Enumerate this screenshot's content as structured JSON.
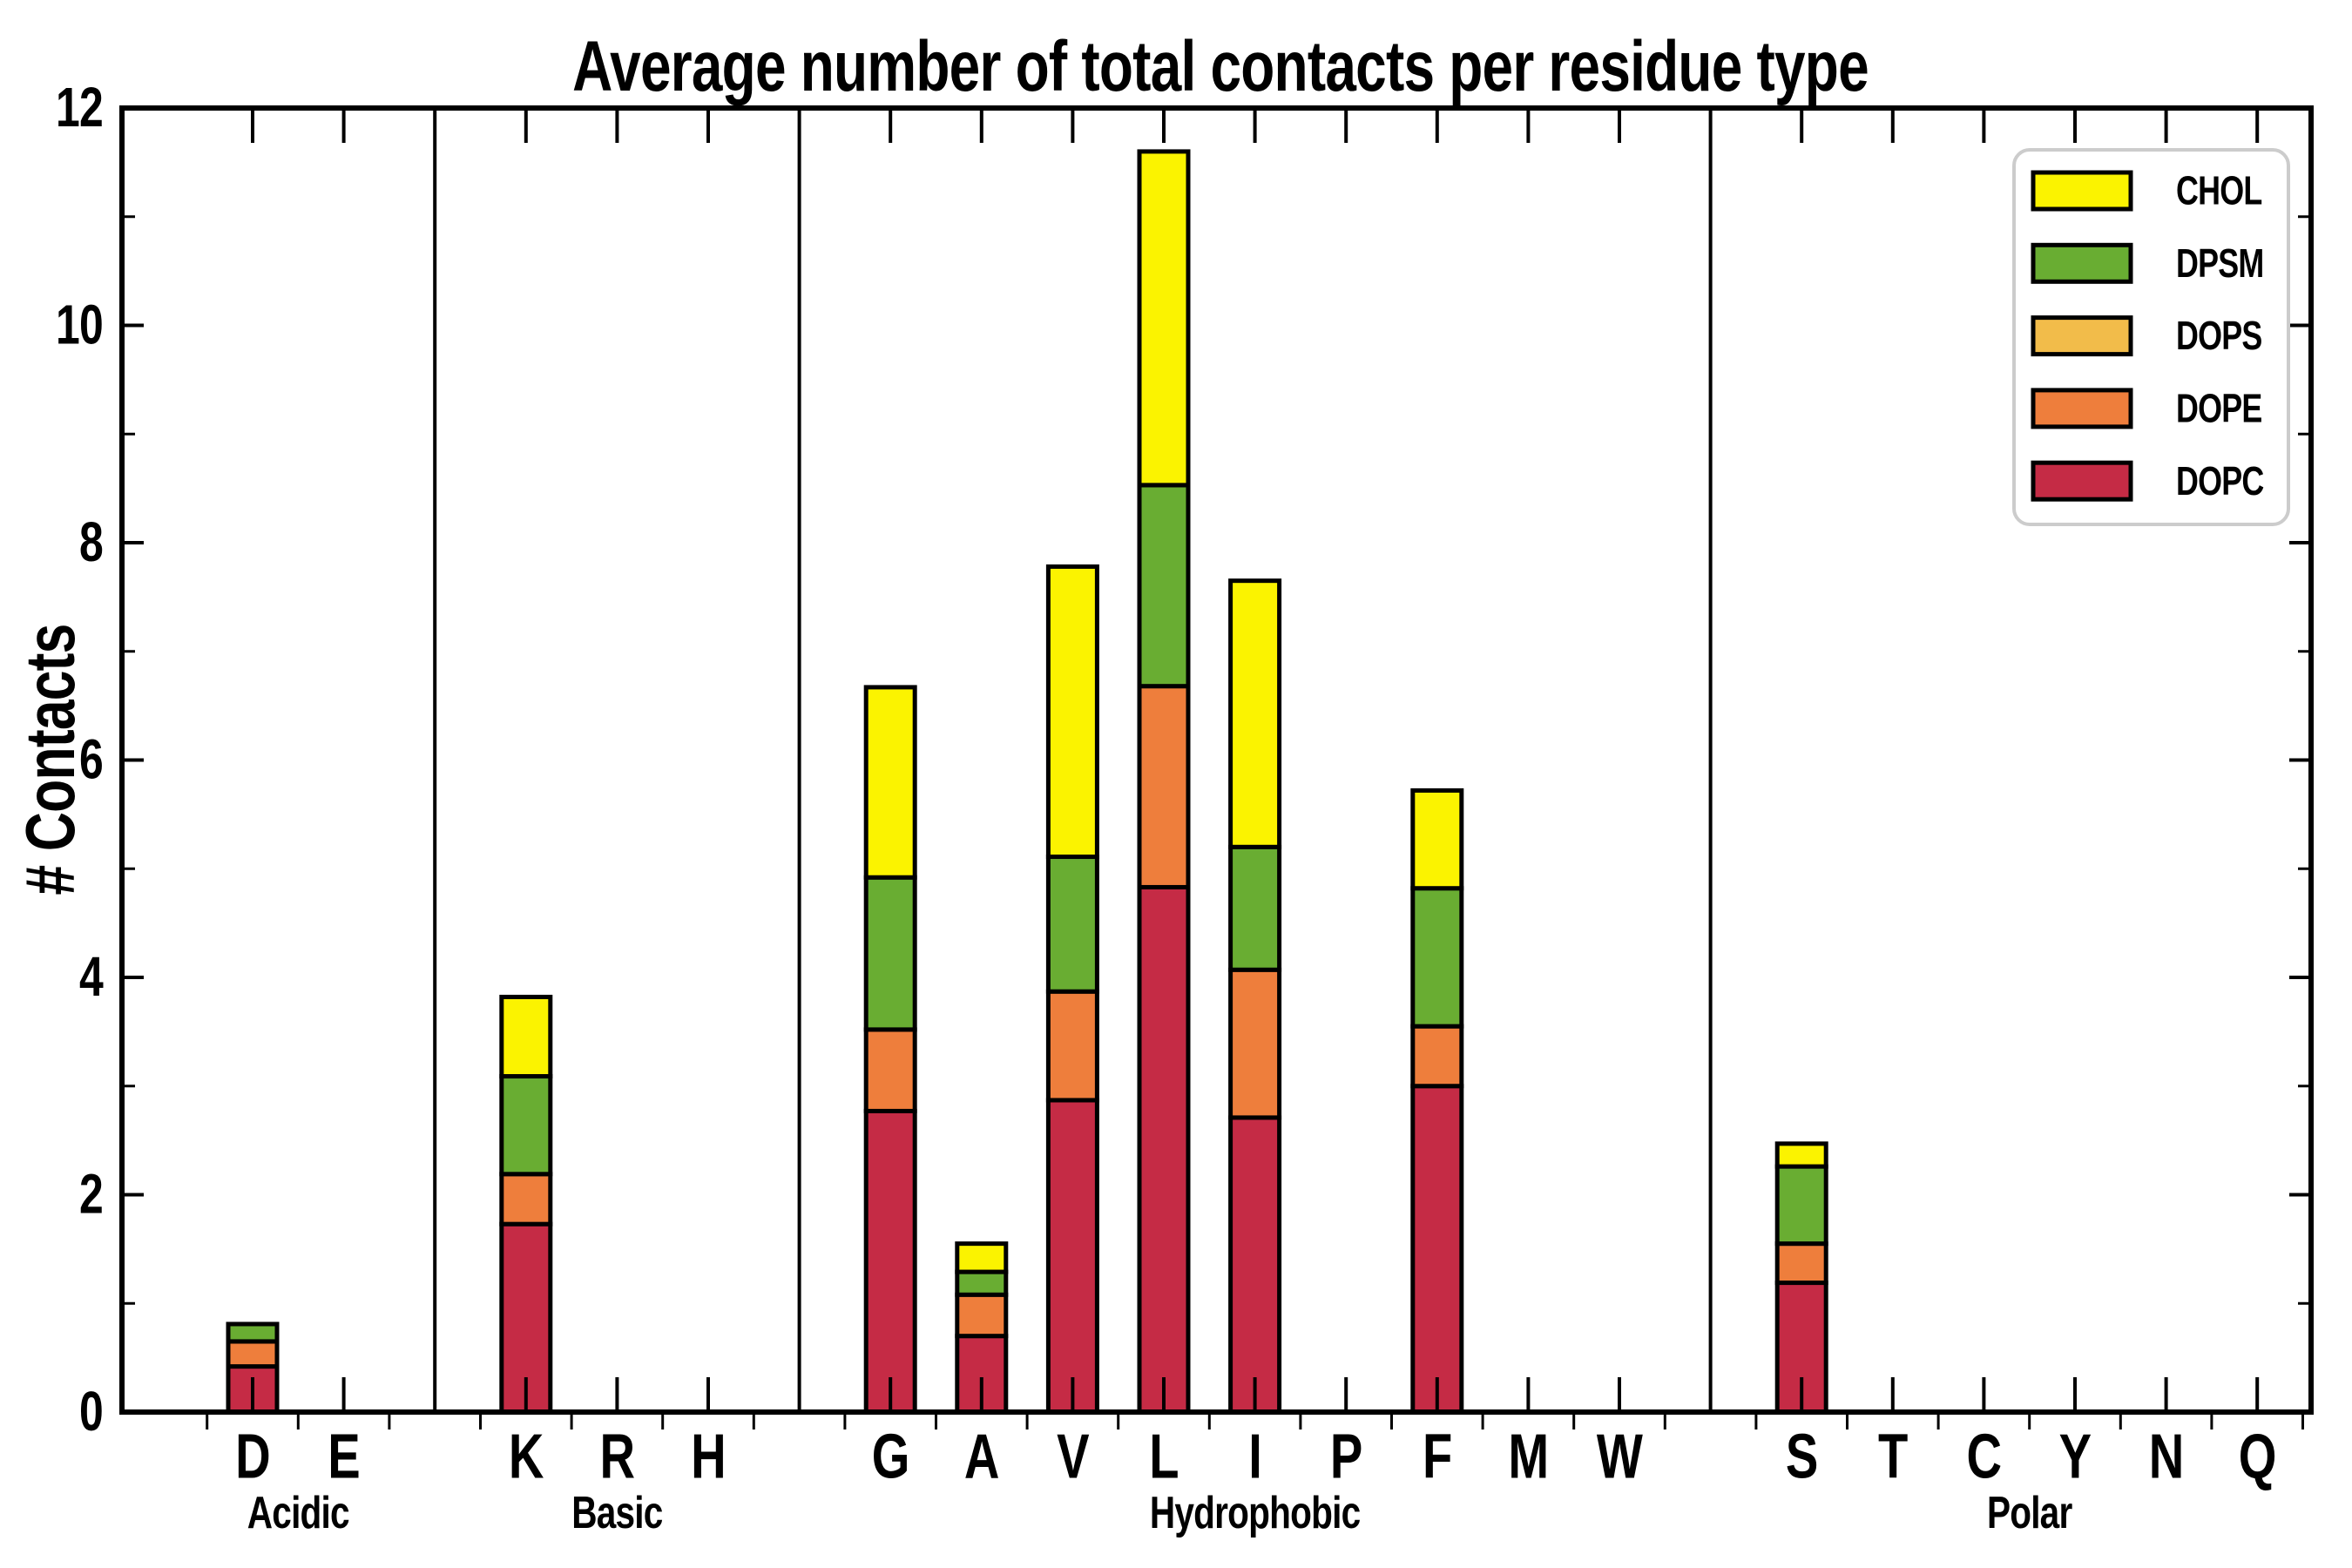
{
  "title": "Average number of total contacts per residue type",
  "y_axis": {
    "label": "# Contacts",
    "tick_labels": [
      "0",
      "2",
      "4",
      "6",
      "8",
      "10",
      "12"
    ],
    "min": 0,
    "max": 12
  },
  "legend": {
    "position": "upper right",
    "items": [
      {
        "label": "CHOL",
        "color": "#FBF300"
      },
      {
        "label": "DPSM",
        "color": "#69AD32"
      },
      {
        "label": "DOPS",
        "color": "#F2BC4A"
      },
      {
        "label": "DOPE",
        "color": "#EE7E3C"
      },
      {
        "label": "DOPC",
        "color": "#C52B45"
      }
    ]
  },
  "colors": {
    "axes": "#000000",
    "background": "#ffffff",
    "legend_border": "#cccccc"
  },
  "chart_data": {
    "type": "bar",
    "stacked": true,
    "title": "Average number of total contacts per residue type",
    "xlabel": "",
    "ylabel": "# Contacts",
    "ylim": [
      0,
      12
    ],
    "y_major_ticks": [
      0,
      2,
      4,
      6,
      8,
      10,
      12
    ],
    "y_minor_ticks": [
      1,
      3,
      5,
      7,
      9,
      11
    ],
    "grid": false,
    "legend_order_top_to_bottom": [
      "CHOL",
      "DPSM",
      "DOPS",
      "DOPE",
      "DOPC"
    ],
    "groups": [
      {
        "label": "Acidic",
        "categories": [
          "D",
          "E"
        ]
      },
      {
        "label": "Basic",
        "categories": [
          "K",
          "R",
          "H"
        ]
      },
      {
        "label": "Hydrophobic",
        "categories": [
          "G",
          "A",
          "V",
          "L",
          "I",
          "P",
          "F",
          "M",
          "W"
        ]
      },
      {
        "label": "Polar",
        "categories": [
          "S",
          "T",
          "C",
          "Y",
          "N",
          "Q"
        ]
      }
    ],
    "categories": [
      "D",
      "E",
      "K",
      "R",
      "H",
      "G",
      "A",
      "V",
      "L",
      "I",
      "P",
      "F",
      "M",
      "W",
      "S",
      "T",
      "C",
      "Y",
      "N",
      "Q"
    ],
    "series": [
      {
        "name": "DOPC",
        "color": "#C52B45",
        "values": [
          0.42,
          0,
          1.73,
          0,
          0,
          2.77,
          0.7,
          2.87,
          4.83,
          2.71,
          0,
          3.0,
          0,
          0,
          1.19,
          0,
          0,
          0,
          0,
          0
        ]
      },
      {
        "name": "DOPE",
        "color": "#EE7E3C",
        "values": [
          0.23,
          0,
          0.46,
          0,
          0,
          0.75,
          0.38,
          1.0,
          1.85,
          1.36,
          0,
          0.55,
          0,
          0,
          0.36,
          0,
          0,
          0,
          0,
          0
        ]
      },
      {
        "name": "DOPS",
        "color": "#F2BC4A",
        "values": [
          0,
          0,
          0,
          0,
          0,
          0,
          0,
          0,
          0,
          0,
          0,
          0,
          0,
          0,
          0,
          0,
          0,
          0,
          0,
          0
        ]
      },
      {
        "name": "DPSM",
        "color": "#69AD32",
        "values": [
          0.16,
          0,
          0.9,
          0,
          0,
          1.4,
          0.21,
          1.24,
          1.85,
          1.13,
          0,
          1.27,
          0,
          0,
          0.71,
          0,
          0,
          0,
          0,
          0
        ]
      },
      {
        "name": "CHOL",
        "color": "#FBF300",
        "values": [
          0,
          0,
          0.73,
          0,
          0,
          1.75,
          0.26,
          2.67,
          3.07,
          2.45,
          0,
          0.9,
          0,
          0,
          0.21,
          0,
          0,
          0,
          0,
          0
        ]
      }
    ],
    "totals": [
      0.81,
      0,
      3.82,
      0,
      0,
      6.67,
      1.55,
      7.78,
      11.6,
      7.65,
      0,
      5.72,
      0,
      0,
      2.47,
      0,
      0,
      0,
      0,
      0
    ]
  }
}
